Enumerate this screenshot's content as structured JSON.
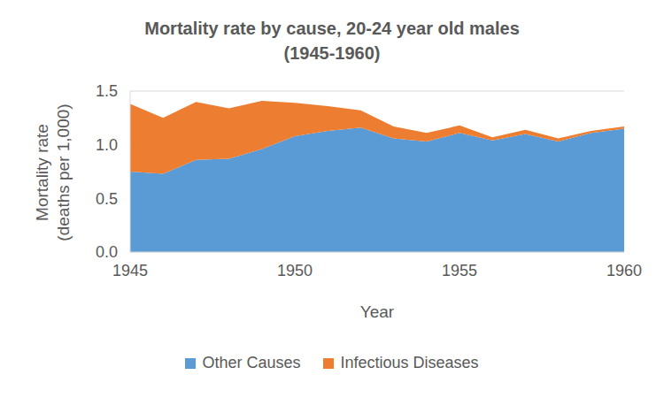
{
  "chart_data": {
    "type": "area",
    "title": "Mortality rate by cause, 20-24 year old males (1945-1960)",
    "x_label": "Year",
    "y_label": "Mortality rate (deaths per 1,000)",
    "x": [
      1945,
      1946,
      1947,
      1948,
      1949,
      1950,
      1951,
      1952,
      1953,
      1954,
      1955,
      1956,
      1957,
      1958,
      1959,
      1960
    ],
    "series": [
      {
        "name": "Other Causes",
        "color": "#5b9bd5",
        "values": [
          0.75,
          0.73,
          0.86,
          0.87,
          0.96,
          1.08,
          1.13,
          1.16,
          1.06,
          1.03,
          1.11,
          1.04,
          1.1,
          1.03,
          1.11,
          1.15
        ]
      },
      {
        "name": "Infectious Diseases",
        "color": "#ed7d31",
        "values": [
          0.63,
          0.52,
          0.54,
          0.47,
          0.45,
          0.31,
          0.23,
          0.16,
          0.11,
          0.08,
          0.07,
          0.03,
          0.04,
          0.03,
          0.02,
          0.02
        ]
      }
    ],
    "xlim": [
      1945,
      1960
    ],
    "xticks": [
      1945,
      1950,
      1955,
      1960
    ],
    "ylim": [
      0,
      1.5
    ],
    "yticks": [
      {
        "value": 0,
        "label": "0.0"
      },
      0.5,
      {
        "value": 1,
        "label": "1.0"
      },
      1.5
    ],
    "stacked": true,
    "grid": true,
    "legend": "bottom"
  }
}
